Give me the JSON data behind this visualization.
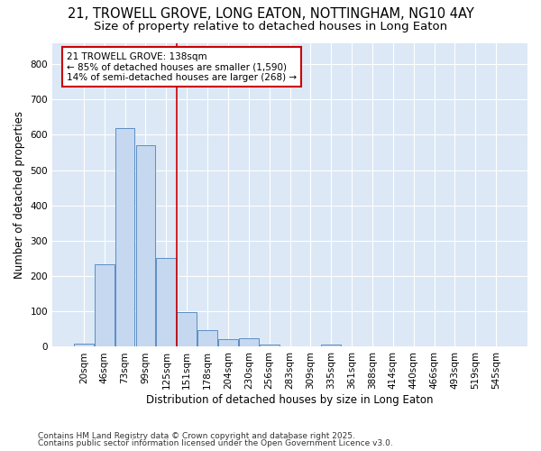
{
  "title_line1": "21, TROWELL GROVE, LONG EATON, NOTTINGHAM, NG10 4AY",
  "title_line2": "Size of property relative to detached houses in Long Eaton",
  "xlabel": "Distribution of detached houses by size in Long Eaton",
  "ylabel": "Number of detached properties",
  "categories": [
    "20sqm",
    "46sqm",
    "73sqm",
    "99sqm",
    "125sqm",
    "151sqm",
    "178sqm",
    "204sqm",
    "230sqm",
    "256sqm",
    "283sqm",
    "309sqm",
    "335sqm",
    "361sqm",
    "388sqm",
    "414sqm",
    "440sqm",
    "466sqm",
    "493sqm",
    "519sqm",
    "545sqm"
  ],
  "values": [
    8,
    233,
    620,
    570,
    252,
    97,
    47,
    22,
    25,
    5,
    2,
    0,
    5,
    0,
    0,
    0,
    0,
    0,
    0,
    0,
    0
  ],
  "bar_color": "#c5d8f0",
  "bar_edge_color": "#5b8ec4",
  "vline_color": "#cc0000",
  "vline_pos": 4.5,
  "annotation_text": "21 TROWELL GROVE: 138sqm\n← 85% of detached houses are smaller (1,590)\n14% of semi-detached houses are larger (268) →",
  "annotation_box_color": "#ffffff",
  "annotation_box_edge": "#cc0000",
  "ylim": [
    0,
    860
  ],
  "yticks": [
    0,
    100,
    200,
    300,
    400,
    500,
    600,
    700,
    800
  ],
  "fig_bg_color": "#ffffff",
  "plot_bg_color": "#dce8f5",
  "grid_color": "#ffffff",
  "footer_line1": "Contains HM Land Registry data © Crown copyright and database right 2025.",
  "footer_line2": "Contains public sector information licensed under the Open Government Licence v3.0.",
  "title_fontsize": 10.5,
  "subtitle_fontsize": 9.5,
  "annotation_fontsize": 7.5,
  "axis_label_fontsize": 8.5,
  "tick_fontsize": 7.5,
  "footer_fontsize": 6.5
}
